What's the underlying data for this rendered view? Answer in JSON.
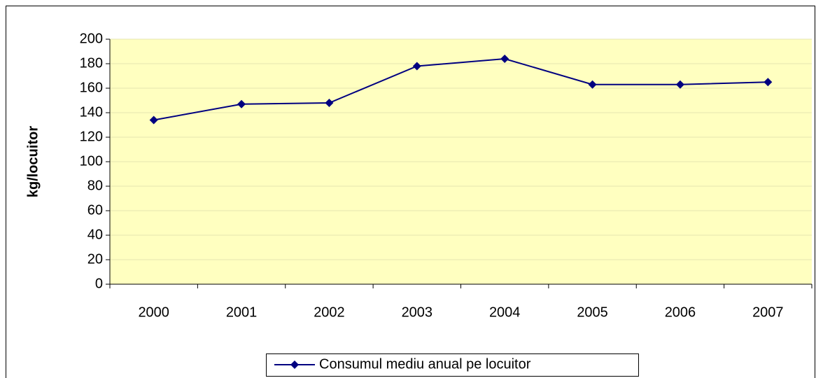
{
  "chart_data": {
    "type": "line",
    "y_label": "kg/locuitor",
    "categories": [
      "2000",
      "2001",
      "2002",
      "2003",
      "2004",
      "2005",
      "2006",
      "2007"
    ],
    "series": [
      {
        "name": "Consumul mediu anual pe locuitor",
        "color": "#000080",
        "values": [
          134,
          147,
          148,
          178,
          184,
          163,
          163,
          165
        ]
      }
    ],
    "ylim": [
      0,
      200
    ],
    "yticks": [
      0,
      20,
      40,
      60,
      80,
      100,
      120,
      140,
      160,
      180,
      200
    ],
    "grid": true,
    "plot_background": "#ffffc0",
    "legend": "bottom"
  }
}
